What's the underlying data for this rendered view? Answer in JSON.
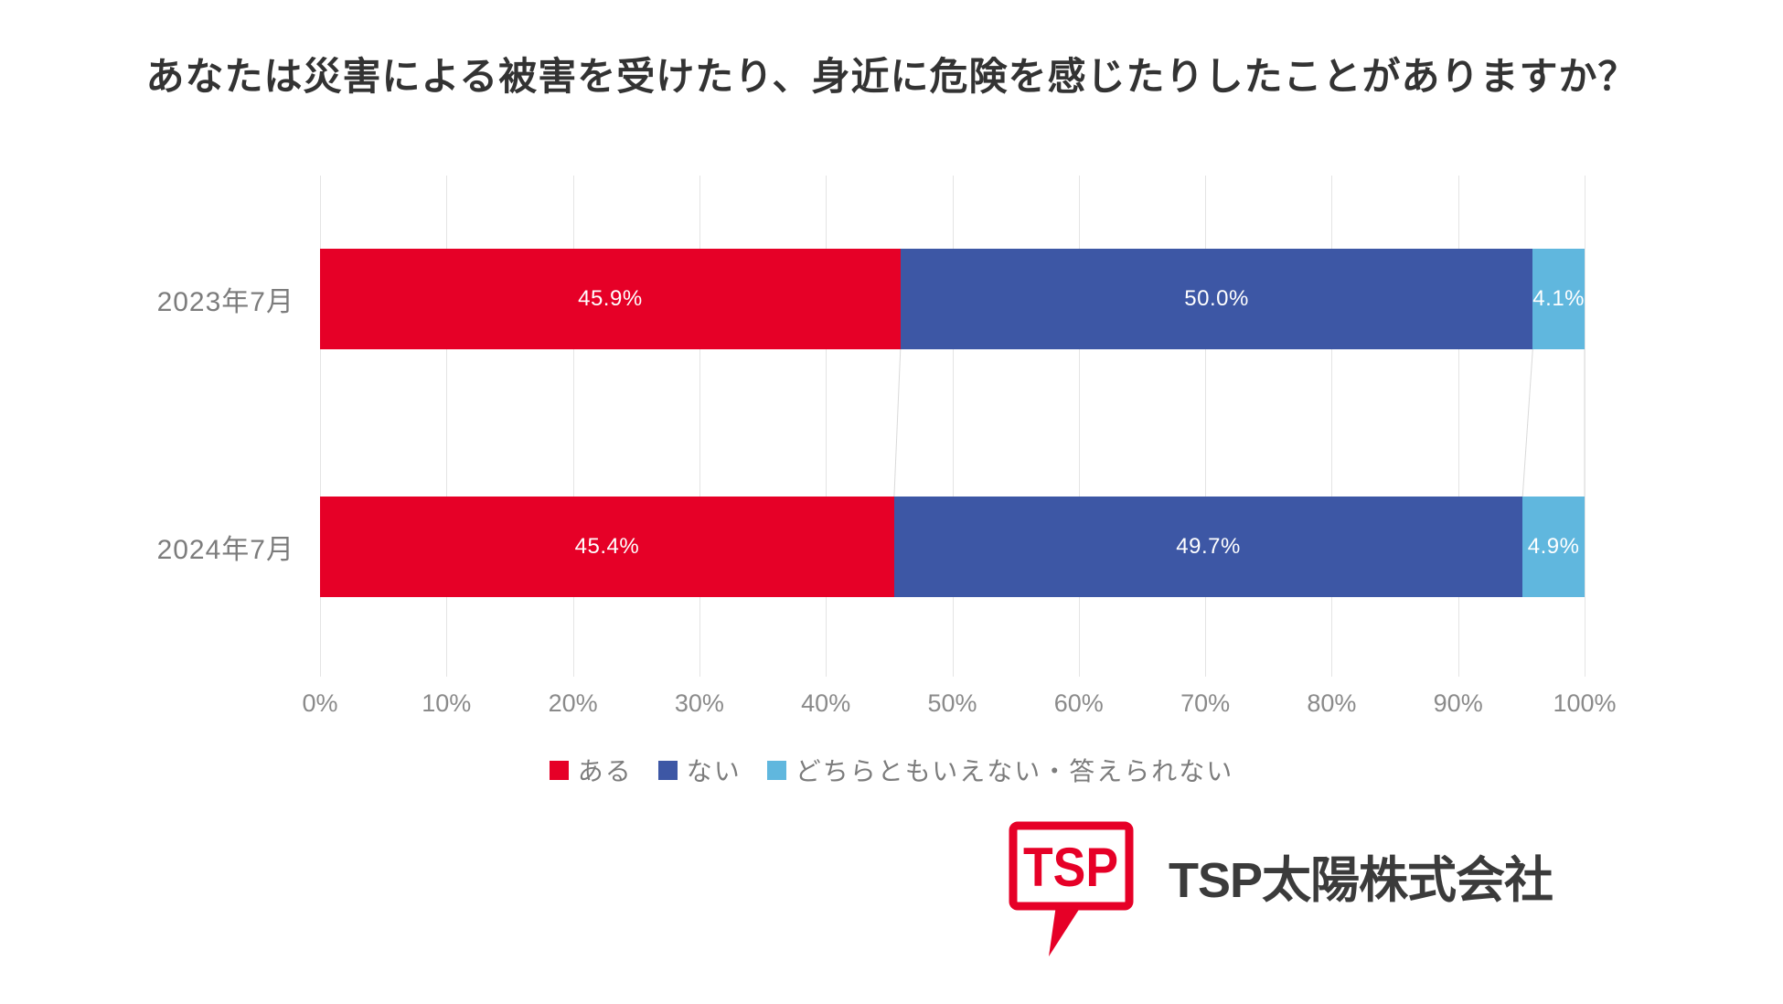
{
  "title": "あなたは災害による被害を受けたり、身近に危険を感じたりしたことがありますか？",
  "chart_data": {
    "type": "bar",
    "orientation": "horizontal",
    "stacked": true,
    "title": "あなたは災害による被害を受けたり、身近に危険を感じたりしたことがありますか？",
    "categories": [
      "2023年7月",
      "2024年7月"
    ],
    "series": [
      {
        "name": "ある",
        "color": "#e60027",
        "values": [
          45.9,
          45.4
        ]
      },
      {
        "name": "ない",
        "color": "#3d57a5",
        "values": [
          50.0,
          49.7
        ]
      },
      {
        "name": "どちらともいえない・答えられない",
        "color": "#60b7de",
        "values": [
          4.1,
          4.9
        ]
      }
    ],
    "value_labels": [
      [
        "45.9%",
        "50.0%",
        "4.1%"
      ],
      [
        "45.4%",
        "49.7%",
        "4.9%"
      ]
    ],
    "x_ticks": [
      "0%",
      "10%",
      "20%",
      "30%",
      "40%",
      "50%",
      "60%",
      "70%",
      "80%",
      "90%",
      "100%"
    ],
    "xlim": [
      0,
      100
    ],
    "grid": true,
    "legend_position": "bottom"
  },
  "footer": {
    "logo_text": "TSP",
    "company_name": "TSP太陽株式会社"
  },
  "colors": {
    "series_red": "#e60027",
    "series_dark_blue": "#3d57a5",
    "series_light_blue": "#60b7de",
    "gridline": "#e4e4e4",
    "connector": "#d9d9d9",
    "title_text": "#333333",
    "label_gray": "#7c7c7c",
    "tick_gray": "#8a8a8a",
    "logo_red": "#e60027"
  }
}
